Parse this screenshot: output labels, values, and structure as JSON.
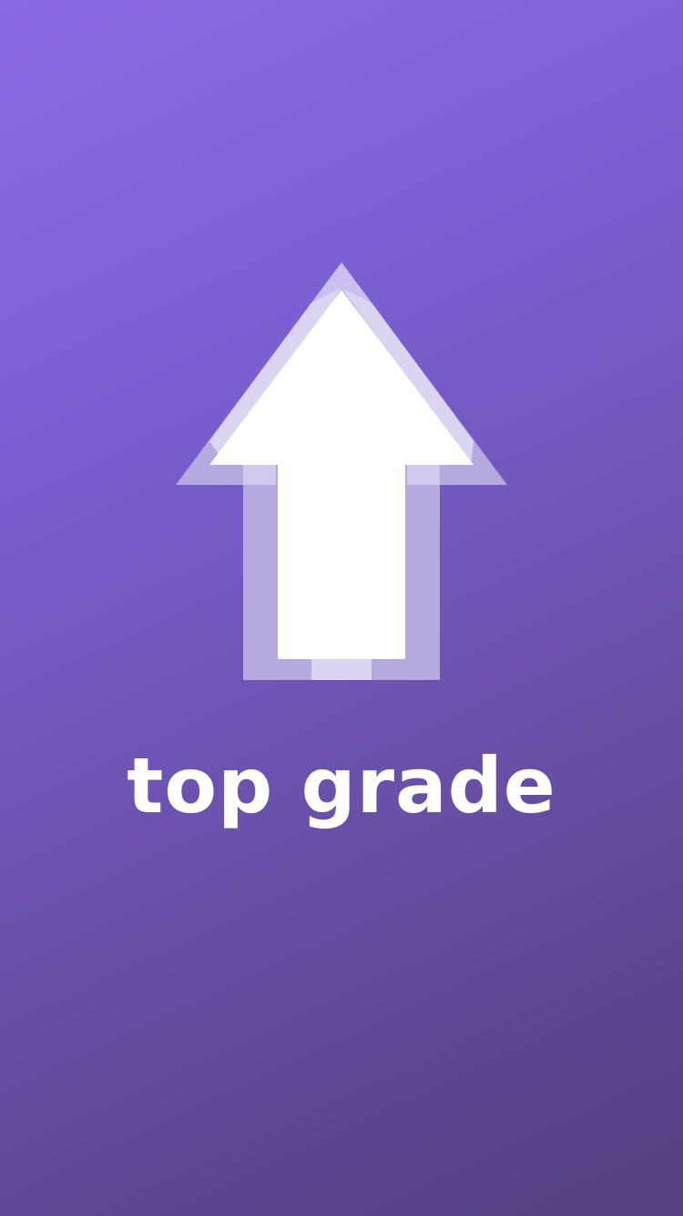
{
  "splash": {
    "app_name": "top grade",
    "logo_icon": "up-arrow-icon",
    "colors": {
      "background_start": "#8a6be6",
      "background_end": "#544282",
      "arrow_fill": "#ffffff",
      "arrow_outline_light": "#dcd5f2",
      "arrow_outline_dark": "#b6a9e0",
      "text": "#ffffff"
    }
  }
}
